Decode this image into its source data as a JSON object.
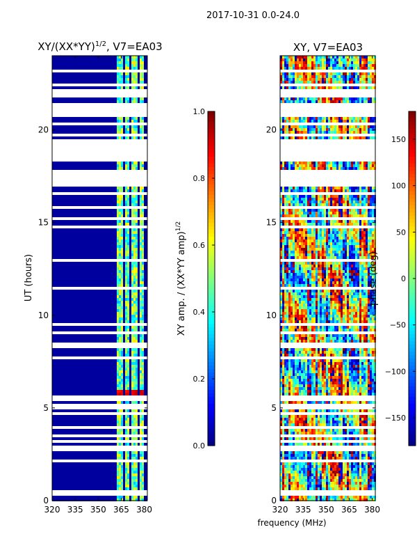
{
  "suptitle": "2017-10-31 0.0-24.0",
  "xlabel_shared": "frequency (MHz)",
  "chart_data": [
    {
      "type": "heatmap",
      "title": "XY/(XX*YY)",
      "title_exponent": "1/2",
      "title_suffix": ", V7=EA03",
      "xlabel": "",
      "ylabel": "UT (hours)",
      "xlim": [
        320,
        382
      ],
      "ylim": [
        0,
        24
      ],
      "xticks": [
        320,
        335,
        350,
        365,
        380
      ],
      "yticks": [
        0,
        5,
        10,
        15,
        20
      ],
      "background_value_desc": "low",
      "colorbar": {
        "label": "XY amp. / (XX*YY amp)",
        "label_exponent": "1/2",
        "range": [
          0.0,
          1.0
        ],
        "ticks": [
          0.0,
          0.2,
          0.4,
          0.6,
          0.8,
          1.0
        ],
        "tick_labels": [
          "0.0",
          "0.2",
          "0.4",
          "0.6",
          "0.8",
          "1.0"
        ]
      },
      "data_gaps_hours": [
        [
          0.45,
          0.6
        ],
        [
          2.7,
          2.95
        ],
        [
          3.1,
          3.25
        ],
        [
          3.5,
          3.6
        ],
        [
          4.1,
          4.2
        ],
        [
          4.6,
          4.75
        ],
        [
          5.05,
          5.2
        ],
        [
          5.4,
          5.6
        ],
        [
          6.2,
          6.3
        ],
        [
          8.3,
          8.4
        ],
        [
          9.0,
          9.1
        ],
        [
          12.4,
          12.5
        ],
        [
          12.9,
          13.1
        ],
        [
          15.8,
          15.9
        ],
        [
          16.5,
          16.7
        ],
        [
          16.9,
          17.8
        ],
        [
          18.3,
          19.5
        ],
        [
          20.7,
          21.4
        ],
        [
          21.9,
          22.0
        ],
        [
          22.4,
          22.5
        ],
        [
          23.1,
          23.2
        ]
      ],
      "high_amplitude_freq_bands_mhz": [
        [
          362,
          366
        ],
        [
          367,
          370
        ],
        [
          372,
          376
        ],
        [
          377,
          380
        ]
      ]
    },
    {
      "type": "heatmap",
      "title": "XY, V7=EA03",
      "xlabel": "frequency (MHz)",
      "ylabel": "",
      "xlim": [
        320,
        382
      ],
      "ylim": [
        0,
        24
      ],
      "xticks": [
        320,
        335,
        350,
        365,
        380
      ],
      "yticks": [
        0,
        5,
        10,
        15,
        20
      ],
      "colorbar": {
        "label": "phase (deg)",
        "range": [
          -180,
          180
        ],
        "ticks": [
          -150,
          -100,
          -50,
          0,
          50,
          100,
          150
        ],
        "tick_labels": [
          "−150",
          "−100",
          "−50",
          "0",
          "50",
          "100",
          "150"
        ]
      },
      "data_gaps_hours": [
        [
          0.45,
          0.6
        ],
        [
          2.7,
          2.95
        ],
        [
          3.1,
          3.25
        ],
        [
          3.5,
          3.6
        ],
        [
          4.1,
          4.2
        ],
        [
          4.6,
          4.75
        ],
        [
          5.05,
          5.2
        ],
        [
          5.4,
          5.6
        ],
        [
          6.2,
          6.3
        ],
        [
          8.3,
          8.4
        ],
        [
          9.0,
          9.1
        ],
        [
          12.4,
          12.5
        ],
        [
          12.9,
          13.1
        ],
        [
          15.8,
          15.9
        ],
        [
          16.5,
          16.7
        ],
        [
          16.9,
          17.8
        ],
        [
          18.3,
          19.5
        ],
        [
          20.7,
          21.4
        ],
        [
          21.9,
          22.0
        ],
        [
          22.4,
          22.5
        ],
        [
          23.1,
          23.2
        ]
      ]
    }
  ]
}
